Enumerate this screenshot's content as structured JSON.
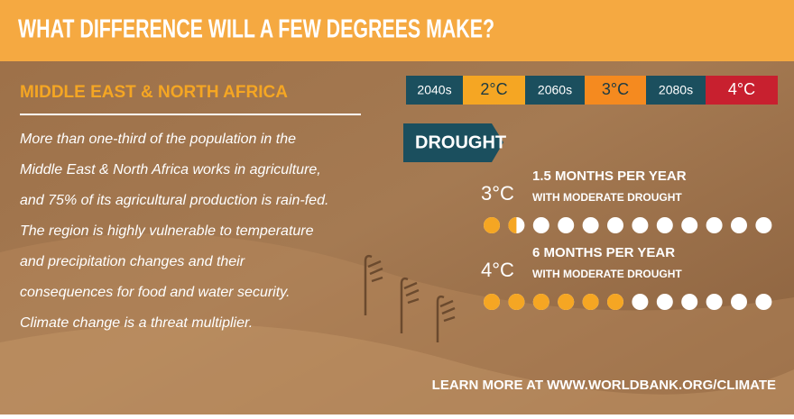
{
  "header": {
    "title": "WHAT DIFFERENCE WILL A FEW DEGREES MAKE?"
  },
  "region": "MIDDLE EAST & NORTH AFRICA",
  "paragraph": [
    "More than one-third of the population in the",
    "Middle East & North Africa works in agriculture,",
    "and 75% of its agricultural production is rain-fed.",
    "The region is highly vulnerable to temperature",
    "and precipitation changes and their",
    "consequences for food and water security.",
    "Climate change is a threat multiplier."
  ],
  "timeline": [
    {
      "decade": "2040s",
      "temp": "2°C"
    },
    {
      "decade": "2060s",
      "temp": "3°C"
    },
    {
      "decade": "2080s",
      "temp": "4°C"
    }
  ],
  "section": "DROUGHT",
  "rows": [
    {
      "temp": "3°C",
      "months": 1.5,
      "label": "1.5 MONTHS PER YEAR",
      "sub": "WITH MODERATE DROUGHT"
    },
    {
      "temp": "4°C",
      "months": 6,
      "label": "6 MONTHS PER YEAR",
      "sub": "WITH MODERATE DROUGHT"
    }
  ],
  "footer": "LEARN MORE AT WWW.WORLDBANK.ORG/CLIMATE"
}
